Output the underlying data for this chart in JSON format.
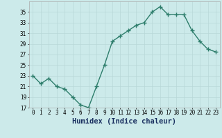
{
  "x": [
    0,
    1,
    2,
    3,
    4,
    5,
    6,
    7,
    8,
    9,
    10,
    11,
    12,
    13,
    14,
    15,
    16,
    17,
    18,
    19,
    20,
    21,
    22,
    23
  ],
  "y": [
    23,
    21.5,
    22.5,
    21,
    20.5,
    19,
    17.5,
    17,
    21,
    25,
    29.5,
    30.5,
    31.5,
    32.5,
    33,
    35,
    36,
    34.5,
    34.5,
    34.5,
    31.5,
    29.5,
    28,
    27.5
  ],
  "line_color": "#2d7d6b",
  "marker": "+",
  "marker_size": 4,
  "bg_color": "#cceaea",
  "grid_color": "#b8d8d8",
  "xlabel": "Humidex (Indice chaleur)",
  "xlim": [
    -0.5,
    23.5
  ],
  "ylim": [
    17,
    37
  ],
  "yticks": [
    17,
    19,
    21,
    23,
    25,
    27,
    29,
    31,
    33,
    35
  ],
  "xtick_labels": [
    "0",
    "1",
    "2",
    "3",
    "4",
    "5",
    "6",
    "7",
    "8",
    "9",
    "10",
    "11",
    "12",
    "13",
    "14",
    "15",
    "16",
    "17",
    "18",
    "19",
    "20",
    "21",
    "22",
    "23"
  ],
  "tick_label_fontsize": 5.5,
  "xlabel_fontsize": 7.5,
  "line_width": 1.0,
  "marker_edge_width": 1.0
}
